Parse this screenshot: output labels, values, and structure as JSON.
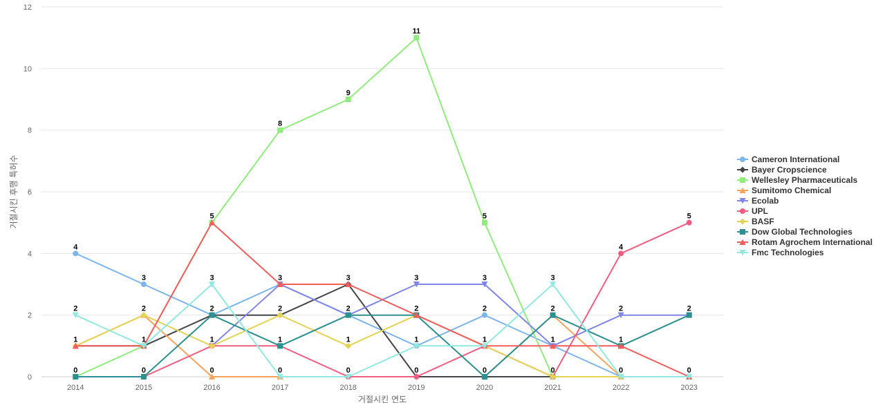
{
  "chart_data": {
    "type": "line",
    "title": "",
    "xlabel": "거절시킨 연도",
    "ylabel": "거절시킨 후행 특허수",
    "categories": [
      "2014",
      "2015",
      "2016",
      "2017",
      "2018",
      "2019",
      "2020",
      "2021",
      "2022",
      "2023"
    ],
    "ylim": [
      0,
      12
    ],
    "yticks": [
      0,
      2,
      4,
      6,
      8,
      10,
      12
    ],
    "grid": true,
    "legend_position": "right",
    "series": [
      {
        "name": "Cameron International",
        "color": "#7cb5ec",
        "marker": "circle",
        "values": [
          4,
          3,
          2,
          3,
          2,
          1,
          2,
          1,
          0,
          null
        ]
      },
      {
        "name": "Bayer Cropscience",
        "color": "#434348",
        "marker": "diamond",
        "values": [
          1,
          1,
          2,
          2,
          3,
          0,
          0,
          0,
          null,
          null
        ]
      },
      {
        "name": "Wellesley Pharmaceuticals",
        "color": "#90ed7d",
        "marker": "square",
        "values": [
          0,
          1,
          5,
          8,
          9,
          11,
          5,
          0,
          null,
          null
        ]
      },
      {
        "name": "Sumitomo Chemical",
        "color": "#f7a35c",
        "marker": "triangle",
        "values": [
          1,
          2,
          0,
          0,
          null,
          null,
          0,
          2,
          0,
          null
        ]
      },
      {
        "name": "Ecolab",
        "color": "#8085e9",
        "marker": "triangle-down",
        "values": [
          null,
          null,
          1,
          3,
          2,
          3,
          3,
          1,
          2,
          2
        ]
      },
      {
        "name": "UPL",
        "color": "#f15c80",
        "marker": "circle",
        "values": [
          null,
          0,
          1,
          1,
          0,
          0,
          1,
          0,
          4,
          5
        ]
      },
      {
        "name": "BASF",
        "color": "#e4d354",
        "marker": "diamond",
        "values": [
          1,
          2,
          1,
          2,
          1,
          2,
          1,
          0,
          0,
          null
        ]
      },
      {
        "name": "Dow Global Technologies",
        "color": "#2b908f",
        "marker": "square",
        "values": [
          0,
          0,
          2,
          1,
          2,
          2,
          0,
          2,
          1,
          2
        ]
      },
      {
        "name": "Rotam Agrochem International",
        "color": "#f45b5b",
        "marker": "triangle",
        "values": [
          1,
          1,
          5,
          3,
          3,
          2,
          1,
          1,
          1,
          0
        ]
      },
      {
        "name": "Fmc Technologies",
        "color": "#91e8e1",
        "marker": "triangle-down",
        "values": [
          2,
          1,
          3,
          0,
          0,
          1,
          1,
          3,
          0,
          0
        ]
      }
    ],
    "data_labels": [
      {
        "x": "2014",
        "y": 4,
        "text": "4"
      },
      {
        "x": "2014",
        "y": 2,
        "text": "2"
      },
      {
        "x": "2014",
        "y": 1,
        "text": "1"
      },
      {
        "x": "2014",
        "y": 0,
        "text": "0"
      },
      {
        "x": "2015",
        "y": 3,
        "text": "3"
      },
      {
        "x": "2015",
        "y": 2,
        "text": "2"
      },
      {
        "x": "2015",
        "y": 1,
        "text": "1"
      },
      {
        "x": "2015",
        "y": 0,
        "text": "0"
      },
      {
        "x": "2016",
        "y": 5,
        "text": "5"
      },
      {
        "x": "2016",
        "y": 3,
        "text": "3"
      },
      {
        "x": "2016",
        "y": 2,
        "text": "2"
      },
      {
        "x": "2016",
        "y": 1,
        "text": "1"
      },
      {
        "x": "2016",
        "y": 0,
        "text": "0"
      },
      {
        "x": "2017",
        "y": 8,
        "text": "8"
      },
      {
        "x": "2017",
        "y": 3,
        "text": "3"
      },
      {
        "x": "2017",
        "y": 2,
        "text": "2"
      },
      {
        "x": "2017",
        "y": 1,
        "text": "1"
      },
      {
        "x": "2017",
        "y": 0,
        "text": "0"
      },
      {
        "x": "2018",
        "y": 9,
        "text": "9"
      },
      {
        "x": "2018",
        "y": 3,
        "text": "3"
      },
      {
        "x": "2018",
        "y": 2,
        "text": "2"
      },
      {
        "x": "2018",
        "y": 1,
        "text": "1"
      },
      {
        "x": "2018",
        "y": 0,
        "text": "0"
      },
      {
        "x": "2019",
        "y": 11,
        "text": "11"
      },
      {
        "x": "2019",
        "y": 3,
        "text": "3"
      },
      {
        "x": "2019",
        "y": 2,
        "text": "2"
      },
      {
        "x": "2019",
        "y": 1,
        "text": "1"
      },
      {
        "x": "2019",
        "y": 0,
        "text": "0"
      },
      {
        "x": "2020",
        "y": 5,
        "text": "5"
      },
      {
        "x": "2020",
        "y": 3,
        "text": "3"
      },
      {
        "x": "2020",
        "y": 2,
        "text": "2"
      },
      {
        "x": "2020",
        "y": 1,
        "text": "1"
      },
      {
        "x": "2020",
        "y": 0,
        "text": "0"
      },
      {
        "x": "2021",
        "y": 3,
        "text": "3"
      },
      {
        "x": "2021",
        "y": 2,
        "text": "2"
      },
      {
        "x": "2021",
        "y": 1,
        "text": "1"
      },
      {
        "x": "2021",
        "y": 0,
        "text": "0"
      },
      {
        "x": "2022",
        "y": 4,
        "text": "4"
      },
      {
        "x": "2022",
        "y": 2,
        "text": "2"
      },
      {
        "x": "2022",
        "y": 1,
        "text": "1"
      },
      {
        "x": "2022",
        "y": 0,
        "text": "0"
      },
      {
        "x": "2023",
        "y": 5,
        "text": "5"
      },
      {
        "x": "2023",
        "y": 2,
        "text": "2"
      },
      {
        "x": "2023",
        "y": 0,
        "text": "0"
      }
    ]
  }
}
